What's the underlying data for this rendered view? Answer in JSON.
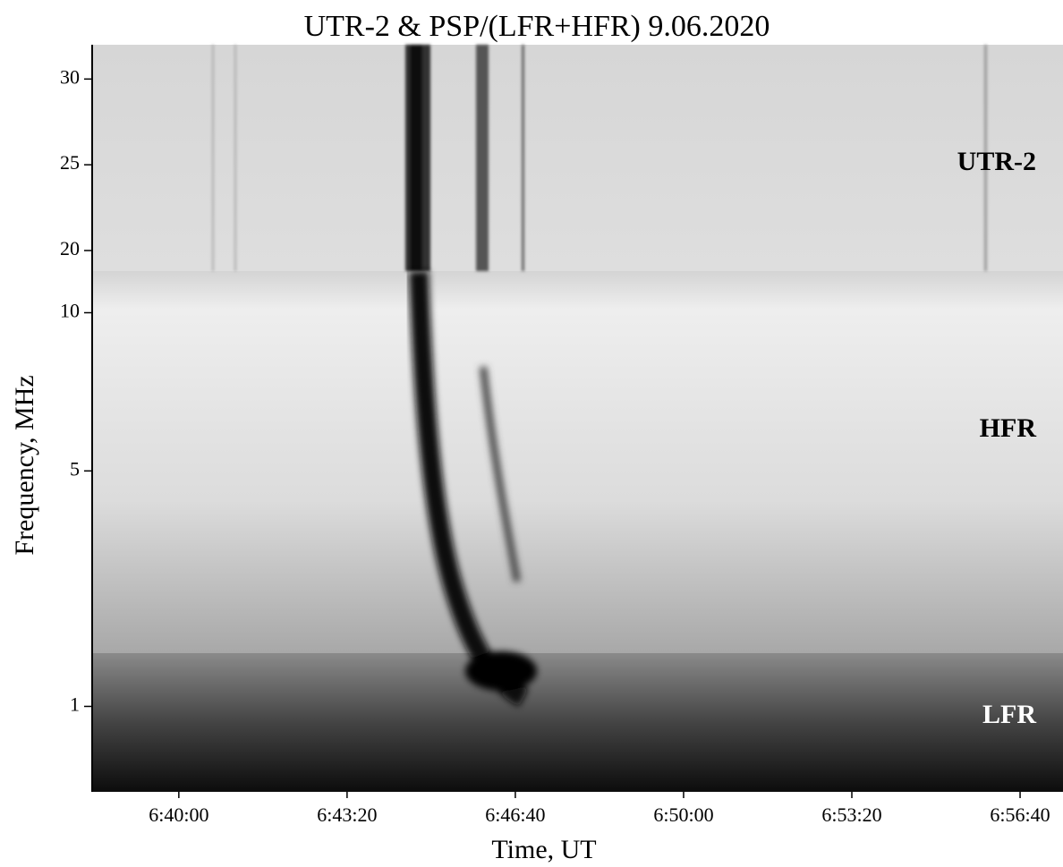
{
  "chart_data": {
    "type": "spectrogram",
    "title": "UTR-2 & PSP/(LFR+HFR) 9.06.2020",
    "x_label": "Time, UT",
    "y_label": "Frequency, MHz",
    "xlim": [
      23897,
      25051
    ],
    "xticks": [
      {
        "value": 24000,
        "label": "6:40:00"
      },
      {
        "value": 24200,
        "label": "6:43:20"
      },
      {
        "value": 24400,
        "label": "6:46:40"
      },
      {
        "value": 24600,
        "label": "6:50:00"
      },
      {
        "value": 24800,
        "label": "6:53:20"
      },
      {
        "value": 25000,
        "label": "6:56:40"
      }
    ],
    "panels": [
      {
        "name": "UTR-2",
        "yscale": "linear",
        "ylim": [
          18.8,
          32
        ],
        "yticks": [
          20,
          25,
          30
        ]
      },
      {
        "name": "HFR",
        "yscale": "log",
        "ylim": [
          2.25,
          12
        ],
        "yticks": [
          5,
          10
        ]
      },
      {
        "name": "LFR",
        "yscale": "log",
        "ylim": [
          0.69,
          1.26
        ],
        "yticks": [
          1
        ]
      }
    ]
  }
}
